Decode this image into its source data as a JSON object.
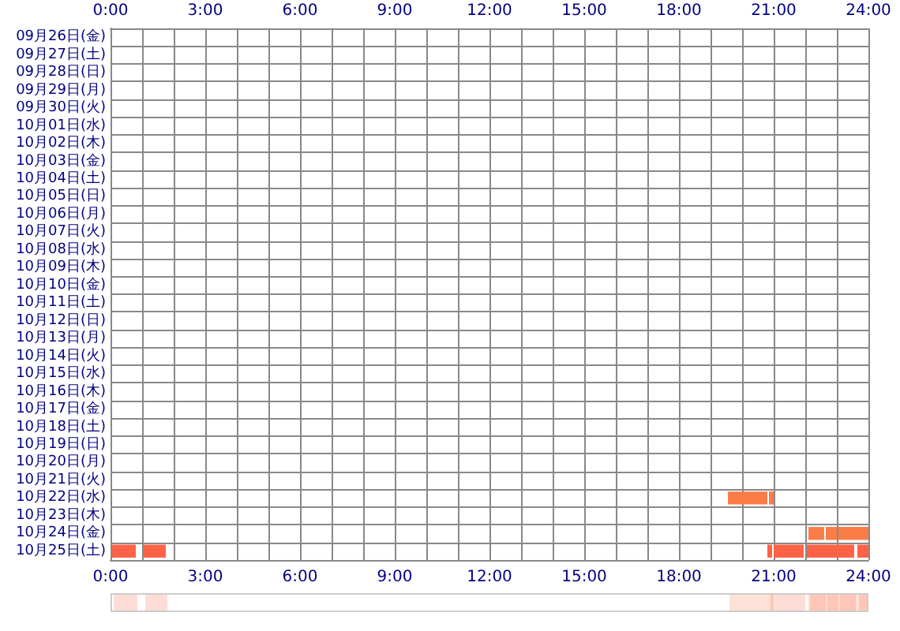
{
  "chart_data": {
    "type": "bar",
    "orientation": "horizontal",
    "grid": true,
    "categories": [
      "09月26日(金)",
      "09月27日(土)",
      "09月28日(日)",
      "09月29日(月)",
      "09月30日(火)",
      "10月01日(水)",
      "10月02日(木)",
      "10月03日(金)",
      "10月04日(土)",
      "10月05日(日)",
      "10月06日(月)",
      "10月07日(火)",
      "10月08日(水)",
      "10月09日(木)",
      "10月10日(金)",
      "10月11日(土)",
      "10月12日(日)",
      "10月13日(月)",
      "10月14日(火)",
      "10月15日(水)",
      "10月16日(木)",
      "10月17日(金)",
      "10月18日(土)",
      "10月19日(日)",
      "10月20日(月)",
      "10月21日(火)",
      "10月22日(水)",
      "10月23日(木)",
      "10月24日(金)",
      "10月25日(土)"
    ],
    "xlim": [
      0,
      24
    ],
    "xticks": [
      {
        "value": 0,
        "label": "0:00"
      },
      {
        "value": 1,
        "label": null
      },
      {
        "value": 2,
        "label": null
      },
      {
        "value": 3,
        "label": "3:00"
      },
      {
        "value": 4,
        "label": null
      },
      {
        "value": 5,
        "label": null
      },
      {
        "value": 6,
        "label": "6:00"
      },
      {
        "value": 7,
        "label": null
      },
      {
        "value": 8,
        "label": null
      },
      {
        "value": 9,
        "label": "9:00"
      },
      {
        "value": 10,
        "label": null
      },
      {
        "value": 11,
        "label": null
      },
      {
        "value": 12,
        "label": "12:00"
      },
      {
        "value": 13,
        "label": null
      },
      {
        "value": 14,
        "label": null
      },
      {
        "value": 15,
        "label": "15:00"
      },
      {
        "value": 16,
        "label": null
      },
      {
        "value": 17,
        "label": null
      },
      {
        "value": 18,
        "label": "18:00"
      },
      {
        "value": 19,
        "label": null
      },
      {
        "value": 20,
        "label": null
      },
      {
        "value": 21,
        "label": "21:00"
      },
      {
        "value": 22,
        "label": null
      },
      {
        "value": 23,
        "label": null
      },
      {
        "value": 24,
        "label": "24:00"
      }
    ],
    "x2lim": [
      0,
      24
    ],
    "x2ticks": [
      {
        "value": 0,
        "label": "0:00"
      },
      {
        "value": 3,
        "label": "3:00"
      },
      {
        "value": 6,
        "label": "6:00"
      },
      {
        "value": 9,
        "label": "9:00"
      },
      {
        "value": 12,
        "label": "12:00"
      },
      {
        "value": 15,
        "label": "15:00"
      },
      {
        "value": 18,
        "label": "18:00"
      },
      {
        "value": 21,
        "label": "21:00"
      },
      {
        "value": 24,
        "label": "24:00"
      }
    ],
    "series": [
      {
        "color": "#fa7d48",
        "colors": [
          null,
          null,
          null,
          null,
          null,
          null,
          null,
          null,
          null,
          null,
          null,
          null,
          null,
          null,
          null,
          null,
          null,
          null,
          null,
          null,
          null,
          null,
          null,
          null,
          null,
          null,
          "#fa7d48",
          null,
          "#fa7d48",
          "#ff6347"
        ],
        "values": [
          null,
          null,
          null,
          null,
          null,
          null,
          null,
          null,
          null,
          null,
          null,
          null,
          null,
          null,
          null,
          null,
          null,
          null,
          null,
          null,
          null,
          null,
          null,
          null,
          null,
          null,
          1.25,
          null,
          0.5,
          0.75
        ],
        "base": [
          null,
          null,
          null,
          null,
          null,
          null,
          null,
          null,
          null,
          null,
          null,
          null,
          null,
          null,
          null,
          null,
          null,
          null,
          null,
          null,
          null,
          null,
          null,
          null,
          null,
          null,
          19.55,
          null,
          22.1,
          0.05
        ]
      },
      {
        "color": "#fa7d48",
        "colors": [
          null,
          null,
          null,
          null,
          null,
          null,
          null,
          null,
          null,
          null,
          null,
          null,
          null,
          null,
          null,
          null,
          null,
          null,
          null,
          null,
          null,
          null,
          null,
          null,
          null,
          null,
          "#fa7d48",
          null,
          "#fa7d48",
          "#ff6347"
        ],
        "values": [
          null,
          null,
          null,
          null,
          null,
          null,
          null,
          null,
          null,
          null,
          null,
          null,
          null,
          null,
          null,
          null,
          null,
          null,
          null,
          null,
          null,
          null,
          null,
          null,
          null,
          null,
          0.15,
          null,
          0.35,
          0.7
        ],
        "base": [
          null,
          null,
          null,
          null,
          null,
          null,
          null,
          null,
          null,
          null,
          null,
          null,
          null,
          null,
          null,
          null,
          null,
          null,
          null,
          null,
          null,
          null,
          null,
          null,
          null,
          null,
          20.85,
          null,
          22.65,
          1.05
        ]
      },
      {
        "color": "#fa7d48",
        "colors": [
          null,
          null,
          null,
          null,
          null,
          null,
          null,
          null,
          null,
          null,
          null,
          null,
          null,
          null,
          null,
          null,
          null,
          null,
          null,
          null,
          null,
          null,
          null,
          null,
          null,
          null,
          null,
          null,
          "#fa7d48",
          "#ff6347"
        ],
        "values": [
          null,
          null,
          null,
          null,
          null,
          null,
          null,
          null,
          null,
          null,
          null,
          null,
          null,
          null,
          null,
          null,
          null,
          null,
          null,
          null,
          null,
          null,
          null,
          null,
          null,
          null,
          null,
          null,
          0.95,
          0.15
        ],
        "base": [
          null,
          null,
          null,
          null,
          null,
          null,
          null,
          null,
          null,
          null,
          null,
          null,
          null,
          null,
          null,
          null,
          null,
          null,
          null,
          null,
          null,
          null,
          null,
          null,
          null,
          null,
          null,
          null,
          23.05,
          20.8
        ]
      },
      {
        "color": "#ff6347",
        "values": [
          null,
          null,
          null,
          null,
          null,
          null,
          null,
          null,
          null,
          null,
          null,
          null,
          null,
          null,
          null,
          null,
          null,
          null,
          null,
          null,
          null,
          null,
          null,
          null,
          null,
          null,
          null,
          null,
          null,
          0.95
        ],
        "base": [
          null,
          null,
          null,
          null,
          null,
          null,
          null,
          null,
          null,
          null,
          null,
          null,
          null,
          null,
          null,
          null,
          null,
          null,
          null,
          null,
          null,
          null,
          null,
          null,
          null,
          null,
          null,
          null,
          null,
          21.0
        ]
      },
      {
        "color": "#ff6347",
        "values": [
          null,
          null,
          null,
          null,
          null,
          null,
          null,
          null,
          null,
          null,
          null,
          null,
          null,
          null,
          null,
          null,
          null,
          null,
          null,
          null,
          null,
          null,
          null,
          null,
          null,
          null,
          null,
          null,
          null,
          1.5
        ],
        "base": [
          null,
          null,
          null,
          null,
          null,
          null,
          null,
          null,
          null,
          null,
          null,
          null,
          null,
          null,
          null,
          null,
          null,
          null,
          null,
          null,
          null,
          null,
          null,
          null,
          null,
          null,
          null,
          null,
          null,
          22.05
        ]
      },
      {
        "color": "#ff6347",
        "values": [
          null,
          null,
          null,
          null,
          null,
          null,
          null,
          null,
          null,
          null,
          null,
          null,
          null,
          null,
          null,
          null,
          null,
          null,
          null,
          null,
          null,
          null,
          null,
          null,
          null,
          null,
          null,
          null,
          null,
          0.35
        ],
        "base": [
          null,
          null,
          null,
          null,
          null,
          null,
          null,
          null,
          null,
          null,
          null,
          null,
          null,
          null,
          null,
          null,
          null,
          null,
          null,
          null,
          null,
          null,
          null,
          null,
          null,
          null,
          null,
          null,
          null,
          23.65
        ]
      }
    ]
  }
}
